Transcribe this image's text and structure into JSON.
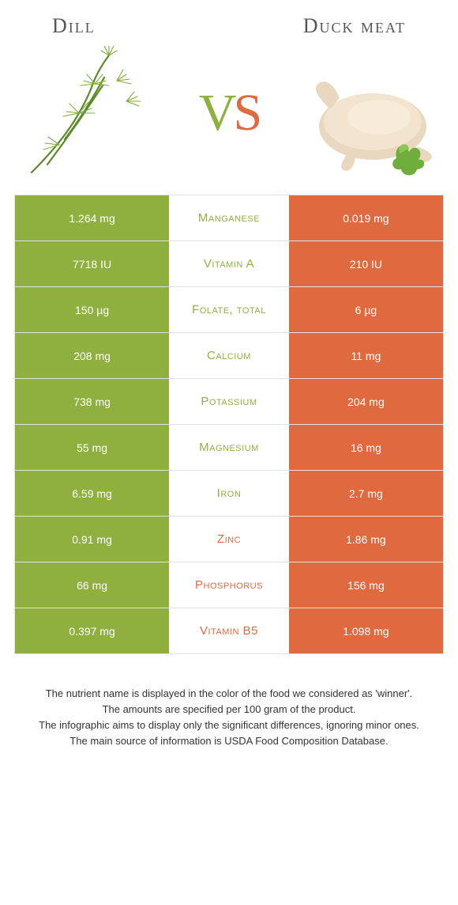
{
  "colors": {
    "green": "#8fb03e",
    "orange": "#e06a3f",
    "border": "#e2e2e2",
    "text": "#333333",
    "title": "#555555",
    "bg": "#ffffff"
  },
  "titles": {
    "left": "Dill",
    "right": "Duck meat"
  },
  "vs": {
    "v": "V",
    "s": "S"
  },
  "rows": [
    {
      "left": "1.264 mg",
      "label": "Manganese",
      "right": "0.019 mg",
      "winner": "left"
    },
    {
      "left": "7718 IU",
      "label": "Vitamin A",
      "right": "210 IU",
      "winner": "left"
    },
    {
      "left": "150 µg",
      "label": "Folate, total",
      "right": "6 µg",
      "winner": "left"
    },
    {
      "left": "208 mg",
      "label": "Calcium",
      "right": "11 mg",
      "winner": "left"
    },
    {
      "left": "738 mg",
      "label": "Potassium",
      "right": "204 mg",
      "winner": "left"
    },
    {
      "left": "55 mg",
      "label": "Magnesium",
      "right": "16 mg",
      "winner": "left"
    },
    {
      "left": "6.59 mg",
      "label": "Iron",
      "right": "2.7 mg",
      "winner": "left"
    },
    {
      "left": "0.91 mg",
      "label": "Zinc",
      "right": "1.86 mg",
      "winner": "right"
    },
    {
      "left": "66 mg",
      "label": "Phosphorus",
      "right": "156 mg",
      "winner": "right"
    },
    {
      "left": "0.397 mg",
      "label": "Vitamin B5",
      "right": "1.098 mg",
      "winner": "right"
    }
  ],
  "footer": [
    "The nutrient name is displayed in the color of the food we considered as 'winner'.",
    "The amounts are specified per 100 gram of the product.",
    "The infographic aims to display only the significant differences, ignoring minor ones.",
    "The main source of information is USDA Food Composition Database."
  ]
}
